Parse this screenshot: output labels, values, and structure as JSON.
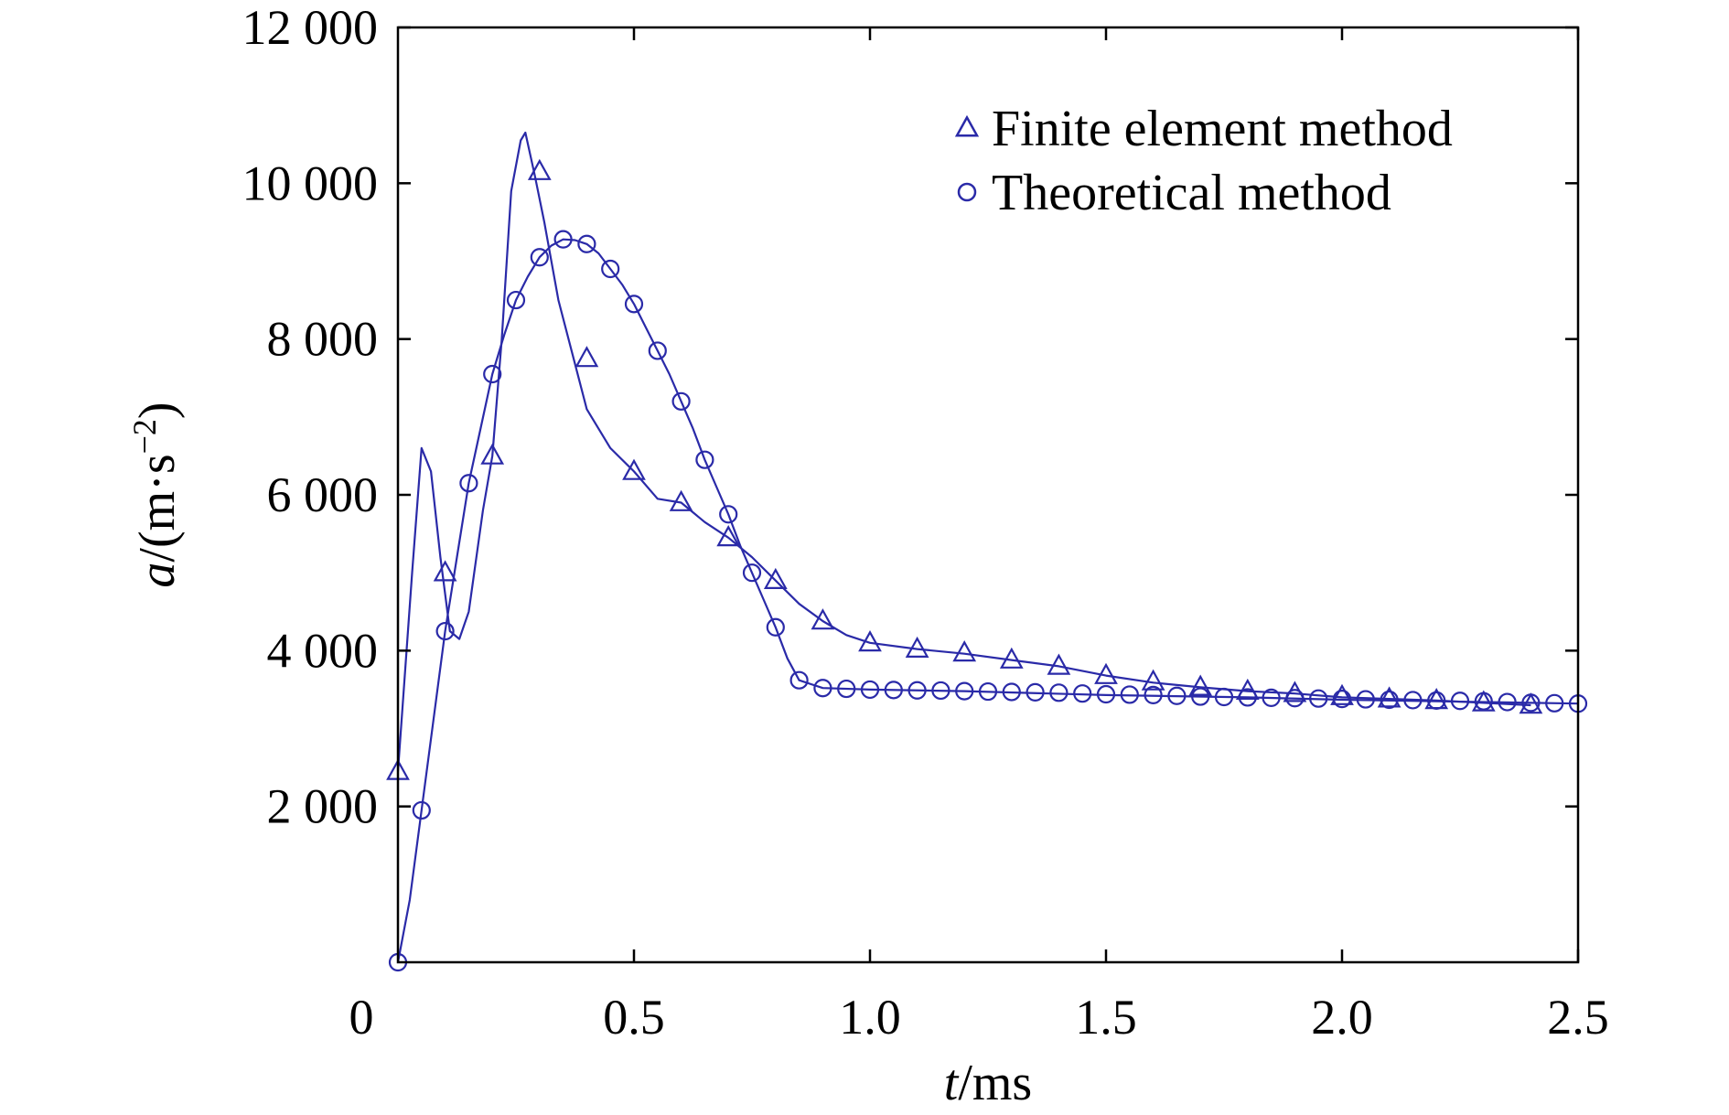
{
  "chart_data": {
    "type": "line",
    "x_axis": {
      "variable": "t",
      "unit": "/ms",
      "range": [
        0.0,
        2.5
      ],
      "ticks": [
        0.0,
        0.5,
        1.0,
        1.5,
        2.0,
        2.5
      ],
      "tick_labels": [
        "0",
        "0.5",
        "1.0",
        "1.5",
        "2.0",
        "2.5"
      ]
    },
    "y_axis": {
      "variable": "a",
      "unit_prefix": "/(m·s",
      "unit_exponent": "−2",
      "unit_suffix": ")",
      "range": [
        0,
        12000
      ],
      "ticks": [
        2000,
        4000,
        6000,
        8000,
        10000,
        12000
      ],
      "tick_labels": [
        "2 000",
        "4 000",
        "6 000",
        "8 000",
        "10 000",
        "12 000"
      ]
    },
    "origin_label": "0",
    "grid": false,
    "legend_position": "top-right",
    "line_color": "#2a2aa8",
    "series": [
      {
        "name": "Finite element method",
        "marker": "triangle",
        "curve": [
          [
            0.0,
            2450
          ],
          [
            0.03,
            5000
          ],
          [
            0.05,
            6600
          ],
          [
            0.07,
            6300
          ],
          [
            0.09,
            5200
          ],
          [
            0.11,
            4250
          ],
          [
            0.13,
            4150
          ],
          [
            0.15,
            4500
          ],
          [
            0.18,
            5800
          ],
          [
            0.2,
            6500
          ],
          [
            0.22,
            8000
          ],
          [
            0.24,
            9900
          ],
          [
            0.26,
            10550
          ],
          [
            0.27,
            10650
          ],
          [
            0.29,
            10100
          ],
          [
            0.31,
            9500
          ],
          [
            0.34,
            8500
          ],
          [
            0.37,
            7800
          ],
          [
            0.4,
            7100
          ],
          [
            0.45,
            6600
          ],
          [
            0.5,
            6300
          ],
          [
            0.55,
            5950
          ],
          [
            0.6,
            5900
          ],
          [
            0.65,
            5650
          ],
          [
            0.7,
            5450
          ],
          [
            0.75,
            5200
          ],
          [
            0.8,
            4900
          ],
          [
            0.85,
            4600
          ],
          [
            0.9,
            4380
          ],
          [
            0.95,
            4200
          ],
          [
            1.0,
            4100
          ],
          [
            1.1,
            4020
          ],
          [
            1.2,
            3960
          ],
          [
            1.3,
            3880
          ],
          [
            1.4,
            3800
          ],
          [
            1.5,
            3680
          ],
          [
            1.6,
            3590
          ],
          [
            1.7,
            3530
          ],
          [
            1.8,
            3480
          ],
          [
            1.9,
            3450
          ],
          [
            2.0,
            3400
          ],
          [
            2.1,
            3380
          ],
          [
            2.2,
            3360
          ],
          [
            2.3,
            3330
          ],
          [
            2.4,
            3300
          ]
        ],
        "markers": [
          [
            0.0,
            2450
          ],
          [
            0.1,
            5000
          ],
          [
            0.2,
            6500
          ],
          [
            0.3,
            10150
          ],
          [
            0.4,
            7750
          ],
          [
            0.5,
            6300
          ],
          [
            0.6,
            5900
          ],
          [
            0.7,
            5450
          ],
          [
            0.8,
            4900
          ],
          [
            0.9,
            4380
          ],
          [
            1.0,
            4100
          ],
          [
            1.1,
            4020
          ],
          [
            1.2,
            3970
          ],
          [
            1.3,
            3880
          ],
          [
            1.4,
            3800
          ],
          [
            1.5,
            3680
          ],
          [
            1.6,
            3600
          ],
          [
            1.7,
            3530
          ],
          [
            1.8,
            3480
          ],
          [
            1.9,
            3450
          ],
          [
            2.0,
            3410
          ],
          [
            2.1,
            3380
          ],
          [
            2.2,
            3360
          ],
          [
            2.3,
            3330
          ],
          [
            2.4,
            3300
          ]
        ]
      },
      {
        "name": "Theoretical method",
        "marker": "circle",
        "curve": [
          [
            0.0,
            0
          ],
          [
            0.025,
            800
          ],
          [
            0.05,
            1950
          ],
          [
            0.075,
            3100
          ],
          [
            0.1,
            4250
          ],
          [
            0.125,
            5200
          ],
          [
            0.15,
            6150
          ],
          [
            0.175,
            6850
          ],
          [
            0.2,
            7550
          ],
          [
            0.225,
            8050
          ],
          [
            0.25,
            8500
          ],
          [
            0.275,
            8800
          ],
          [
            0.3,
            9050
          ],
          [
            0.325,
            9200
          ],
          [
            0.35,
            9280
          ],
          [
            0.375,
            9270
          ],
          [
            0.4,
            9220
          ],
          [
            0.425,
            9100
          ],
          [
            0.45,
            8900
          ],
          [
            0.475,
            8700
          ],
          [
            0.5,
            8450
          ],
          [
            0.525,
            8150
          ],
          [
            0.55,
            7850
          ],
          [
            0.575,
            7550
          ],
          [
            0.6,
            7200
          ],
          [
            0.625,
            6850
          ],
          [
            0.65,
            6450
          ],
          [
            0.675,
            6100
          ],
          [
            0.7,
            5750
          ],
          [
            0.725,
            5350
          ],
          [
            0.75,
            5000
          ],
          [
            0.775,
            4650
          ],
          [
            0.8,
            4300
          ],
          [
            0.825,
            3900
          ],
          [
            0.85,
            3620
          ],
          [
            0.9,
            3520
          ],
          [
            1.0,
            3500
          ],
          [
            1.2,
            3480
          ],
          [
            1.5,
            3430
          ],
          [
            1.8,
            3400
          ],
          [
            2.0,
            3370
          ],
          [
            2.2,
            3350
          ],
          [
            2.5,
            3320
          ]
        ],
        "markers": [
          [
            0.0,
            0
          ],
          [
            0.05,
            1950
          ],
          [
            0.1,
            4250
          ],
          [
            0.15,
            6150
          ],
          [
            0.2,
            7550
          ],
          [
            0.25,
            8500
          ],
          [
            0.3,
            9050
          ],
          [
            0.35,
            9280
          ],
          [
            0.4,
            9220
          ],
          [
            0.45,
            8900
          ],
          [
            0.5,
            8450
          ],
          [
            0.55,
            7850
          ],
          [
            0.6,
            7200
          ],
          [
            0.65,
            6450
          ],
          [
            0.7,
            5750
          ],
          [
            0.75,
            5000
          ],
          [
            0.8,
            4300
          ],
          [
            0.85,
            3620
          ],
          [
            0.9,
            3520
          ],
          [
            0.95,
            3510
          ],
          [
            1.0,
            3500
          ],
          [
            1.05,
            3495
          ],
          [
            1.1,
            3490
          ],
          [
            1.15,
            3488
          ],
          [
            1.2,
            3480
          ],
          [
            1.25,
            3475
          ],
          [
            1.3,
            3470
          ],
          [
            1.35,
            3465
          ],
          [
            1.4,
            3460
          ],
          [
            1.45,
            3450
          ],
          [
            1.5,
            3440
          ],
          [
            1.55,
            3435
          ],
          [
            1.6,
            3430
          ],
          [
            1.65,
            3420
          ],
          [
            1.7,
            3410
          ],
          [
            1.75,
            3405
          ],
          [
            1.8,
            3400
          ],
          [
            1.85,
            3395
          ],
          [
            1.9,
            3390
          ],
          [
            1.95,
            3385
          ],
          [
            2.0,
            3380
          ],
          [
            2.05,
            3375
          ],
          [
            2.1,
            3370
          ],
          [
            2.15,
            3365
          ],
          [
            2.2,
            3360
          ],
          [
            2.25,
            3355
          ],
          [
            2.3,
            3350
          ],
          [
            2.35,
            3340
          ],
          [
            2.4,
            3330
          ],
          [
            2.45,
            3325
          ],
          [
            2.5,
            3320
          ]
        ]
      }
    ]
  }
}
